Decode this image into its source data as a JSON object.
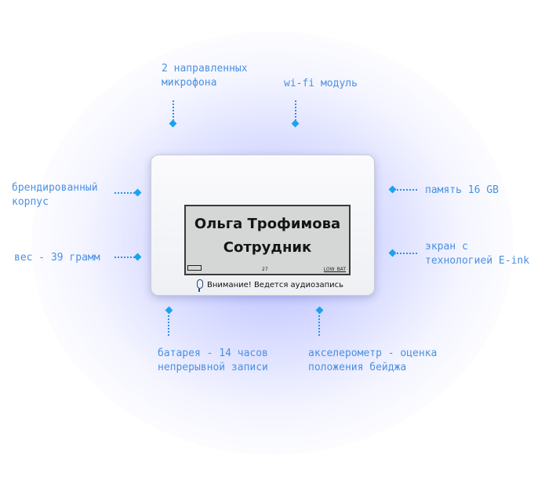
{
  "features": {
    "microphones": [
      "2 направленных",
      "микрофона"
    ],
    "wifi": [
      "wi-fi модуль"
    ],
    "case": [
      "брендированный",
      "корпус"
    ],
    "memory": [
      "память 16 GB"
    ],
    "weight": [
      "вес - 39 грамм"
    ],
    "screen": [
      "экран с",
      "технологией E-ink"
    ],
    "battery": [
      "батарея - 14 часов",
      "непрерывной записи"
    ],
    "accelerometer": [
      "акселерометр - оценка",
      "положения бейджа"
    ]
  },
  "badge": {
    "name": "Ольга Трофимова",
    "role": "Сотрудник",
    "page_number": "27",
    "status": "LOW_BAT",
    "notice": "Внимание! Ведется аудиозапись",
    "notice_icon": "microphone-icon"
  },
  "colors": {
    "label": "#4a90e2",
    "marker": "#1aa3ef",
    "glow": "#6e78ff"
  }
}
